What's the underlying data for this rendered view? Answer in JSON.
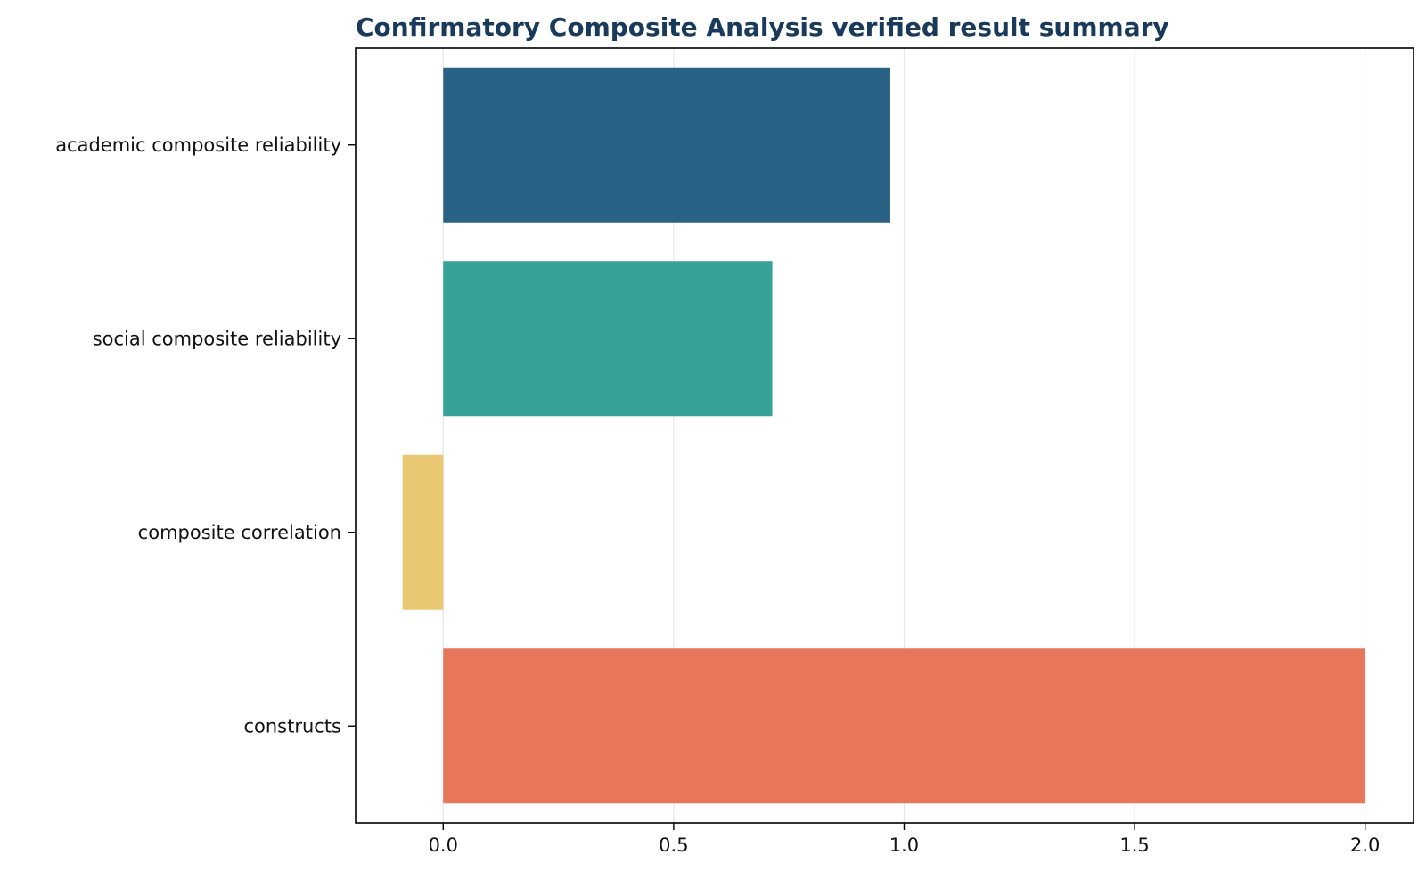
{
  "chart_data": {
    "type": "bar",
    "orientation": "horizontal",
    "title": "Confirmatory Composite Analysis verified result summary",
    "xlabel": "",
    "ylabel": "",
    "categories": [
      "academic composite reliability",
      "social composite reliability",
      "composite correlation",
      "constructs"
    ],
    "values": [
      0.97,
      0.714,
      -0.088,
      2.0
    ],
    "colors": [
      "#1f5a80",
      "#2a9d8f",
      "#e9c46a",
      "#e76f51"
    ],
    "xlim": [
      -0.19,
      2.105
    ],
    "xticks": [
      0.0,
      0.5,
      1.0,
      1.5,
      2.0
    ],
    "xtick_labels": [
      "0.0",
      "0.5",
      "1.0",
      "1.5",
      "2.0"
    ],
    "grid": "vertical",
    "legend": "none"
  }
}
